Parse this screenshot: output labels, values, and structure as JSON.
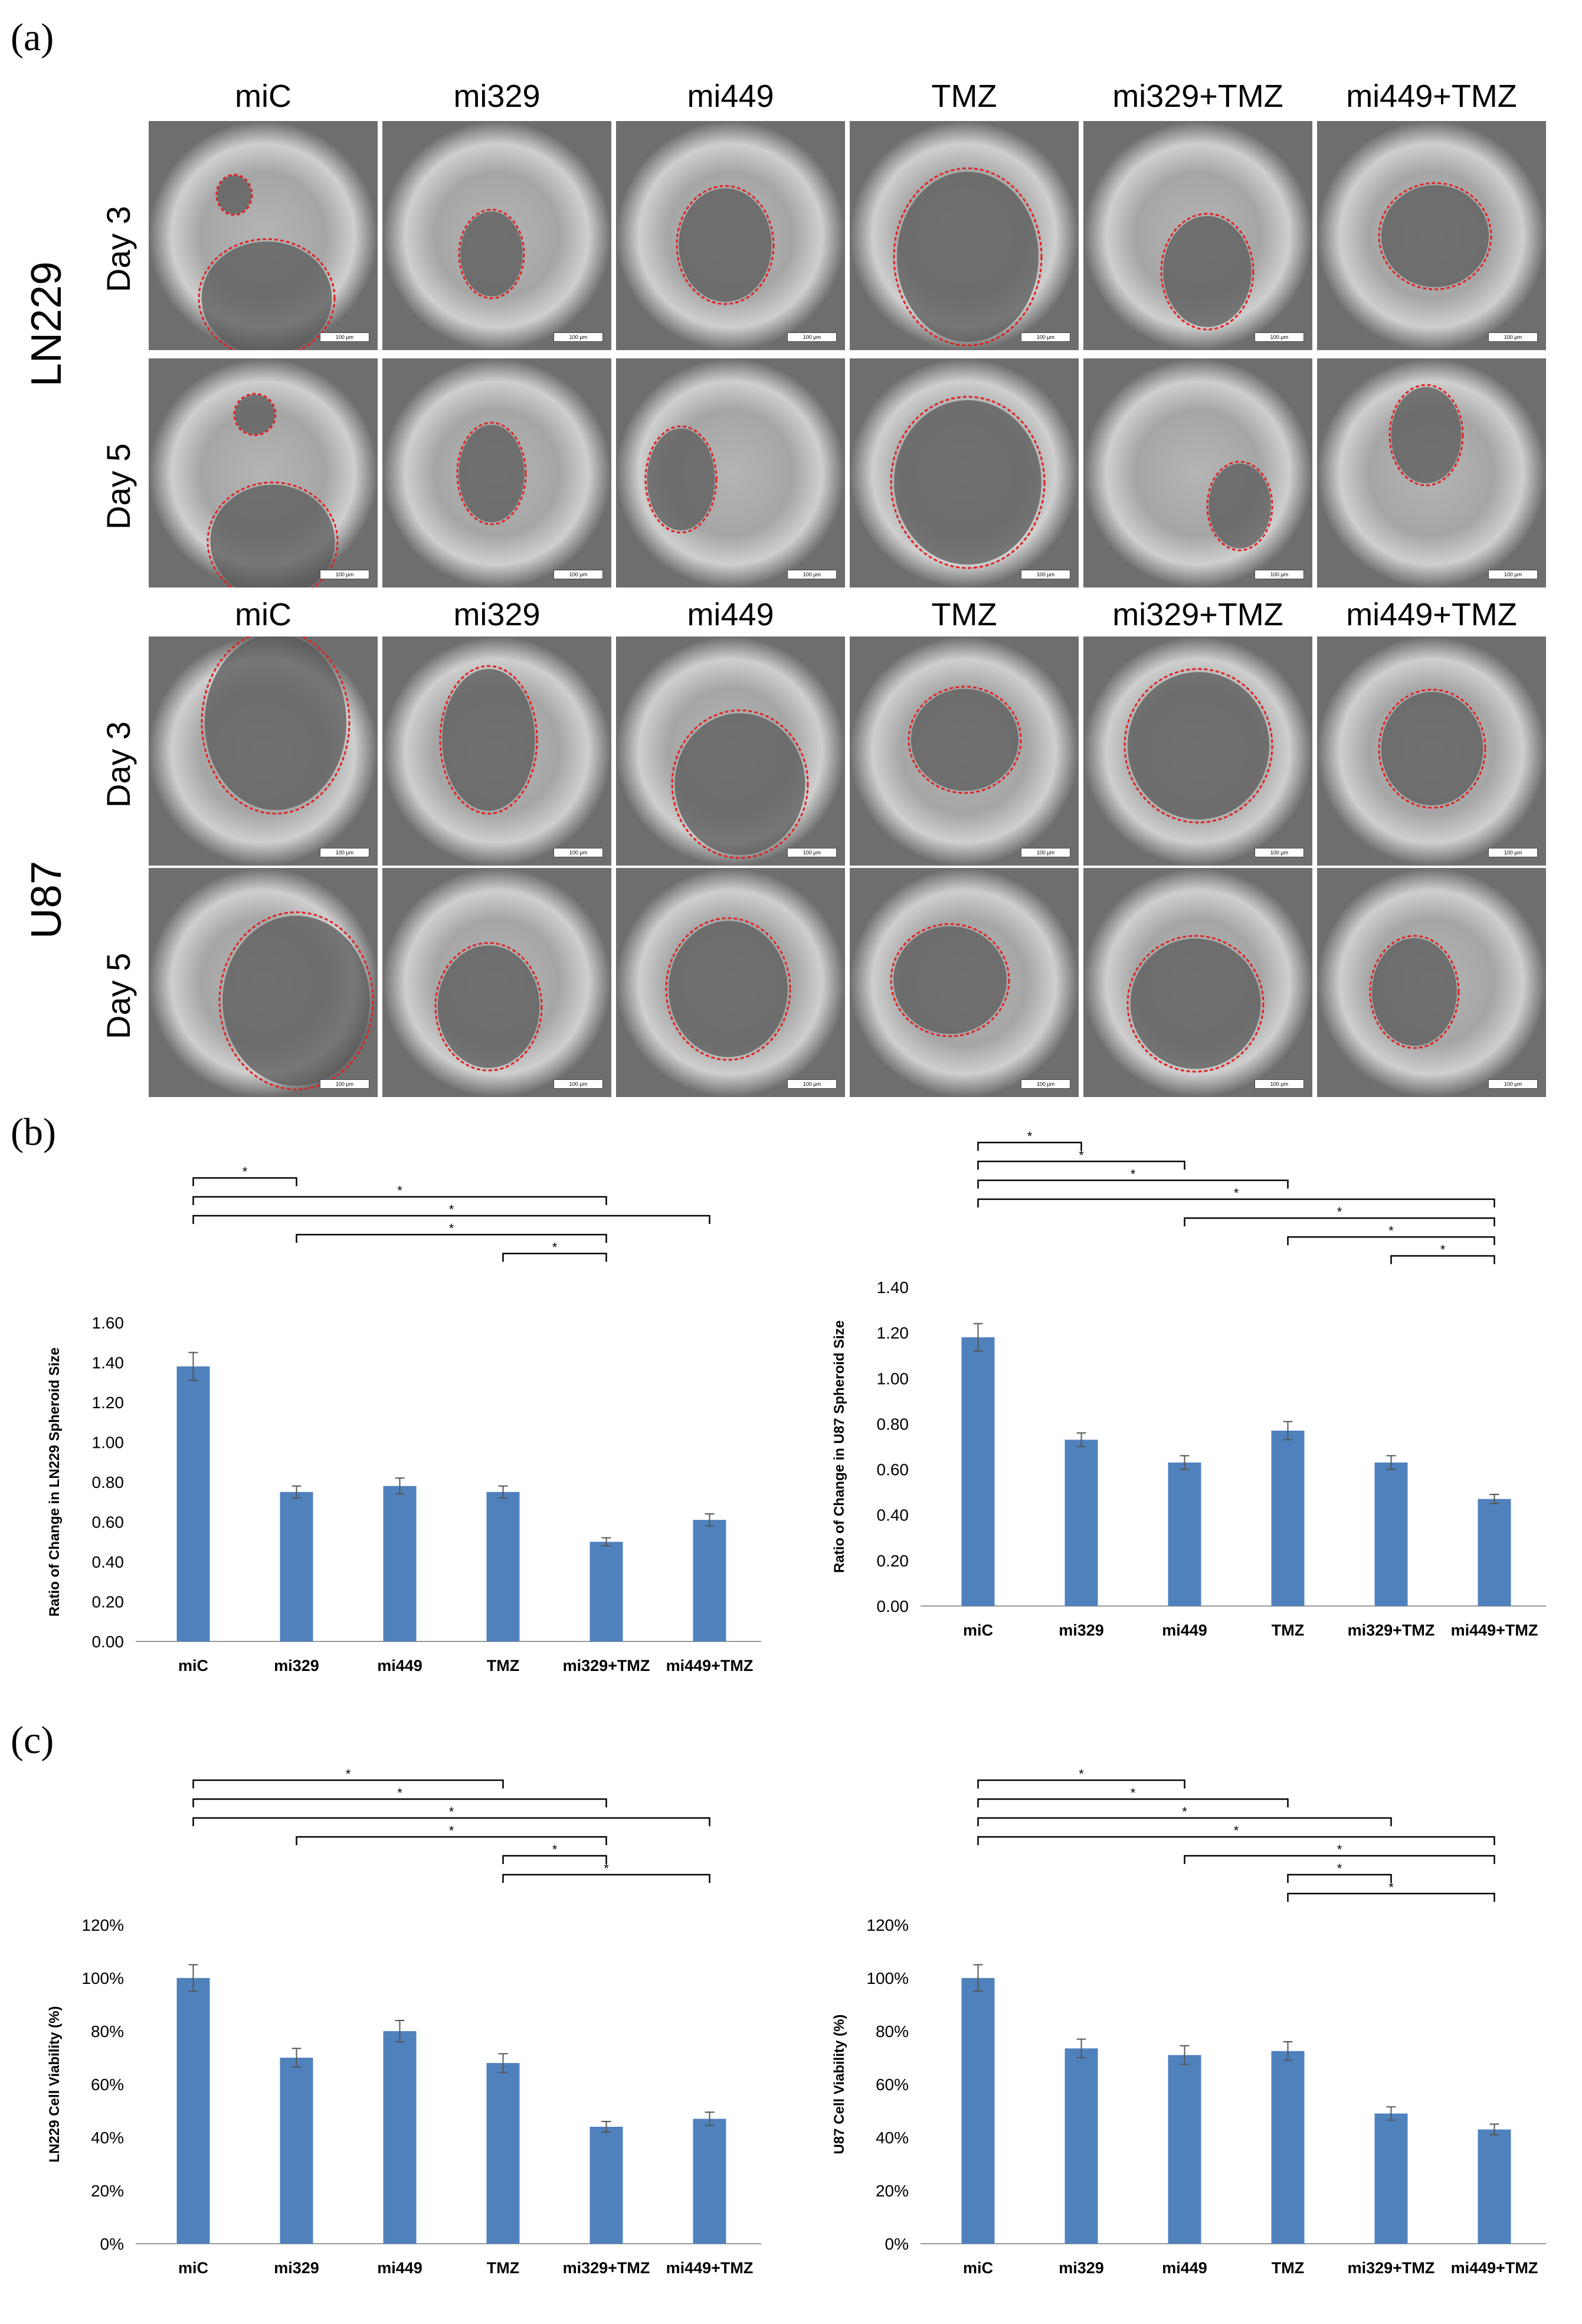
{
  "panels": {
    "a": "(a)",
    "b": "(b)",
    "c": "(c)"
  },
  "microscopy": {
    "columns": [
      "miC",
      "mi329",
      "mi449",
      "TMZ",
      "mi329+TMZ",
      "mi449+TMZ"
    ],
    "cell_lines": [
      "LN229",
      "U87"
    ],
    "days": [
      "Day 3",
      "Day 5"
    ],
    "scale_bar": "100 μm"
  },
  "chart_data": [
    {
      "type": "bar",
      "panel": "b",
      "categories": [
        "miC",
        "mi329",
        "mi449",
        "TMZ",
        "mi329+TMZ",
        "mi449+TMZ"
      ],
      "values": [
        1.38,
        0.75,
        0.78,
        0.75,
        0.5,
        0.61
      ],
      "errors": [
        0.07,
        0.03,
        0.04,
        0.03,
        0.02,
        0.03
      ],
      "ylabel": "Ratio of Change in LN229 Spheroid Size",
      "ylim": [
        0,
        1.6
      ],
      "yticks": [
        "0.00",
        "0.20",
        "0.40",
        "0.60",
        "0.80",
        "1.00",
        "1.20",
        "1.40",
        "1.60"
      ],
      "color": "#4f81bd",
      "significance": [
        [
          0,
          1
        ],
        [
          0,
          4
        ],
        [
          0,
          5
        ],
        [
          1,
          4
        ],
        [
          3,
          4
        ]
      ],
      "sig_mark": "*"
    },
    {
      "type": "bar",
      "panel": "b",
      "categories": [
        "miC",
        "mi329",
        "mi449",
        "TMZ",
        "mi329+TMZ",
        "mi449+TMZ"
      ],
      "values": [
        1.18,
        0.73,
        0.63,
        0.77,
        0.63,
        0.47
      ],
      "errors": [
        0.06,
        0.03,
        0.03,
        0.04,
        0.03,
        0.02
      ],
      "ylabel": "Ratio of Change in U87 Spheroid Size",
      "ylim": [
        0,
        1.4
      ],
      "yticks": [
        "0.00",
        "0.20",
        "0.40",
        "0.60",
        "0.80",
        "1.00",
        "1.20",
        "1.40"
      ],
      "color": "#4f81bd",
      "significance": [
        [
          0,
          1
        ],
        [
          0,
          2
        ],
        [
          0,
          3
        ],
        [
          0,
          5
        ],
        [
          2,
          5
        ],
        [
          3,
          5
        ],
        [
          4,
          5
        ]
      ],
      "sig_mark": "*"
    },
    {
      "type": "bar",
      "panel": "c",
      "categories": [
        "miC",
        "mi329",
        "mi449",
        "TMZ",
        "mi329+TMZ",
        "mi449+TMZ"
      ],
      "values": [
        100,
        70,
        80,
        68,
        44,
        47
      ],
      "errors": [
        5,
        3.5,
        4,
        3.5,
        2,
        2.5
      ],
      "ylabel": "LN229 Cell Viability (%)",
      "ylim": [
        0,
        120
      ],
      "yticks": [
        "0%",
        "20%",
        "40%",
        "60%",
        "80%",
        "100%",
        "120%"
      ],
      "color": "#4f81bd",
      "significance": [
        [
          0,
          3
        ],
        [
          0,
          4
        ],
        [
          0,
          5
        ],
        [
          1,
          4
        ],
        [
          3,
          4
        ],
        [
          3,
          5
        ]
      ],
      "sig_mark": "*"
    },
    {
      "type": "bar",
      "panel": "c",
      "categories": [
        "miC",
        "mi329",
        "mi449",
        "TMZ",
        "mi329+TMZ",
        "mi449+TMZ"
      ],
      "values": [
        100,
        73.5,
        71,
        72.5,
        49,
        43
      ],
      "errors": [
        5,
        3.5,
        3.5,
        3.5,
        2.5,
        2
      ],
      "ylabel": "U87 Cell Viability (%)",
      "ylim": [
        0,
        120
      ],
      "yticks": [
        "0%",
        "20%",
        "40%",
        "60%",
        "80%",
        "100%",
        "120%"
      ],
      "color": "#4f81bd",
      "significance": [
        [
          0,
          2
        ],
        [
          0,
          3
        ],
        [
          0,
          4
        ],
        [
          0,
          5
        ],
        [
          2,
          5
        ],
        [
          3,
          4
        ],
        [
          3,
          5
        ]
      ],
      "sig_mark": "*"
    }
  ]
}
